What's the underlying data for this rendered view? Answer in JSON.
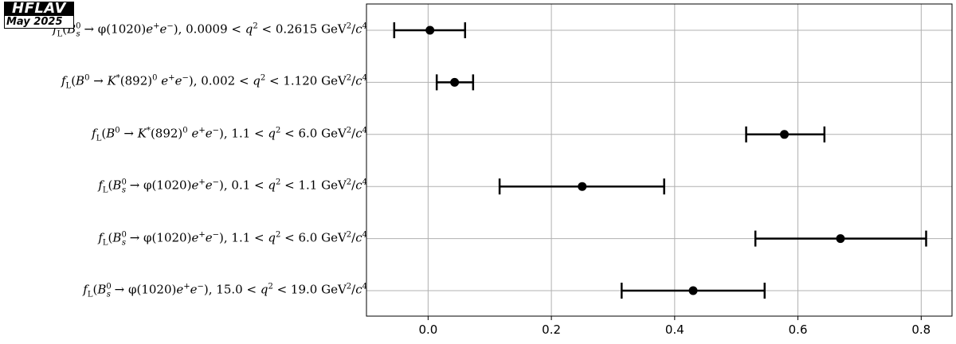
{
  "logo": {
    "line1": "HFLAV",
    "line2": "May 2025"
  },
  "chart_data": {
    "type": "errorbar",
    "orientation": "horizontal",
    "xlim": [
      -0.1,
      0.85
    ],
    "xticks": [
      0.0,
      0.2,
      0.4,
      0.6,
      0.8
    ],
    "xtick_labels": [
      "0.0",
      "0.2",
      "0.4",
      "0.6",
      "0.8"
    ],
    "grid": true,
    "marker_color": "#000000",
    "rows": [
      {
        "label": "f_L(B_s^0 → φ(1020)e^+e^-), 0.0009 < q^2 < 0.2615 GeV^2/c^4",
        "value": 0.003,
        "low": -0.055,
        "high": 0.06
      },
      {
        "label": "f_L(B^0 → K^*(892)^0 e^+e^-), 0.002 < q^2 < 1.120 GeV^2/c^4",
        "value": 0.043,
        "low": 0.014,
        "high": 0.073
      },
      {
        "label": "f_L(B^0 → K^*(892)^0 e^+e^-), 1.1 < q^2 < 6.0 GeV^2/c^4",
        "value": 0.578,
        "low": 0.516,
        "high": 0.643
      },
      {
        "label": "f_L(B_s^0 → φ(1020)e^+e^-), 0.1 < q^2 < 1.1 GeV^2/c^4",
        "value": 0.25,
        "low": 0.116,
        "high": 0.383
      },
      {
        "label": "f_L(B_s^0 → φ(1020)e^+e^-), 1.1 < q^2 < 6.0 GeV^2/c^4",
        "value": 0.669,
        "low": 0.531,
        "high": 0.808
      },
      {
        "label": "f_L(B_s^0 → φ(1020)e^+e^-), 15.0 < q^2 < 19.0 GeV^2/c^4",
        "value": 0.43,
        "low": 0.314,
        "high": 0.546
      }
    ]
  }
}
